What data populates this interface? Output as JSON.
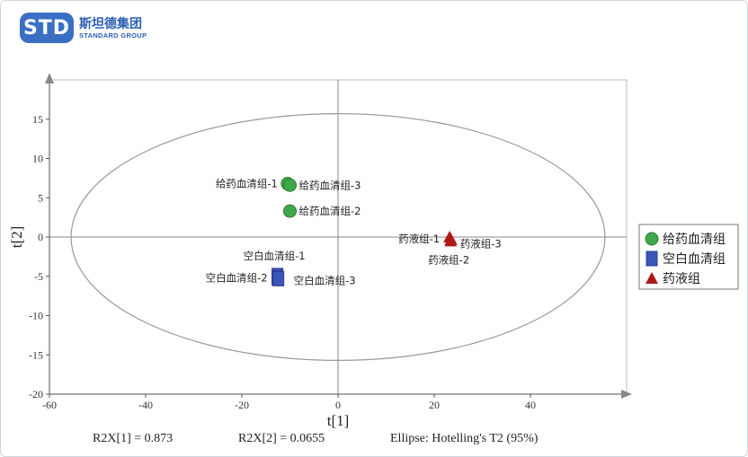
{
  "logo": {
    "badge": "STD",
    "name_cn": "斯坦德集团",
    "name_en": "STANDARD GROUP"
  },
  "colors": {
    "group1": "#3fa84a",
    "group2": "#3b55b8",
    "group3": "#b01818",
    "axis": "#888888",
    "ellipse": "#999999"
  },
  "chart_data": {
    "type": "scatter",
    "xlabel": "t[1]",
    "ylabel": "t[2]",
    "xlim": [
      -60,
      60
    ],
    "ylim": [
      -20,
      20
    ],
    "xticks": [
      -60,
      -40,
      -20,
      0,
      20,
      40
    ],
    "yticks": [
      -20,
      -15,
      -10,
      -5,
      0,
      5,
      10,
      15
    ],
    "ellipse": {
      "cx": 0,
      "cy": 0,
      "rx": 55.5,
      "ry": 15.7
    },
    "series": [
      {
        "name": "给药血清组",
        "marker": "circle",
        "color": "#3fa84a",
        "points": [
          {
            "label": "给药血清组-1",
            "x": -10.5,
            "y": 6.8,
            "label_side": "left"
          },
          {
            "label": "给药血清组-3",
            "x": -10.0,
            "y": 6.6,
            "label_side": "right"
          },
          {
            "label": "给药血清组-2",
            "x": -10.0,
            "y": 3.3,
            "label_side": "right"
          }
        ]
      },
      {
        "name": "空白血清组",
        "marker": "square",
        "color": "#3b55b8",
        "points": [
          {
            "label": "空白血清组-1",
            "x": -12.6,
            "y": -4.9,
            "label_side": "above"
          },
          {
            "label": "空白血清组-2",
            "x": -12.6,
            "y": -5.2,
            "label_side": "left"
          },
          {
            "label": "空白血清组-3",
            "x": -12.4,
            "y": -5.3,
            "label_side": "right-far"
          }
        ]
      },
      {
        "name": "药液组",
        "marker": "triangle",
        "color": "#b01818",
        "points": [
          {
            "label": "药液组-1",
            "x": 23.2,
            "y": 0.0,
            "label_side": "left"
          },
          {
            "label": "药液组-3",
            "x": 23.5,
            "y": -0.3,
            "label_side": "right"
          },
          {
            "label": "药液组-2",
            "x": 23.4,
            "y": -0.5,
            "label_side": "below"
          }
        ]
      }
    ],
    "footer": [
      "R2X[1] = 0.873",
      "R2X[2] = 0.0655",
      "Ellipse: Hotelling's T2 (95%)"
    ]
  }
}
